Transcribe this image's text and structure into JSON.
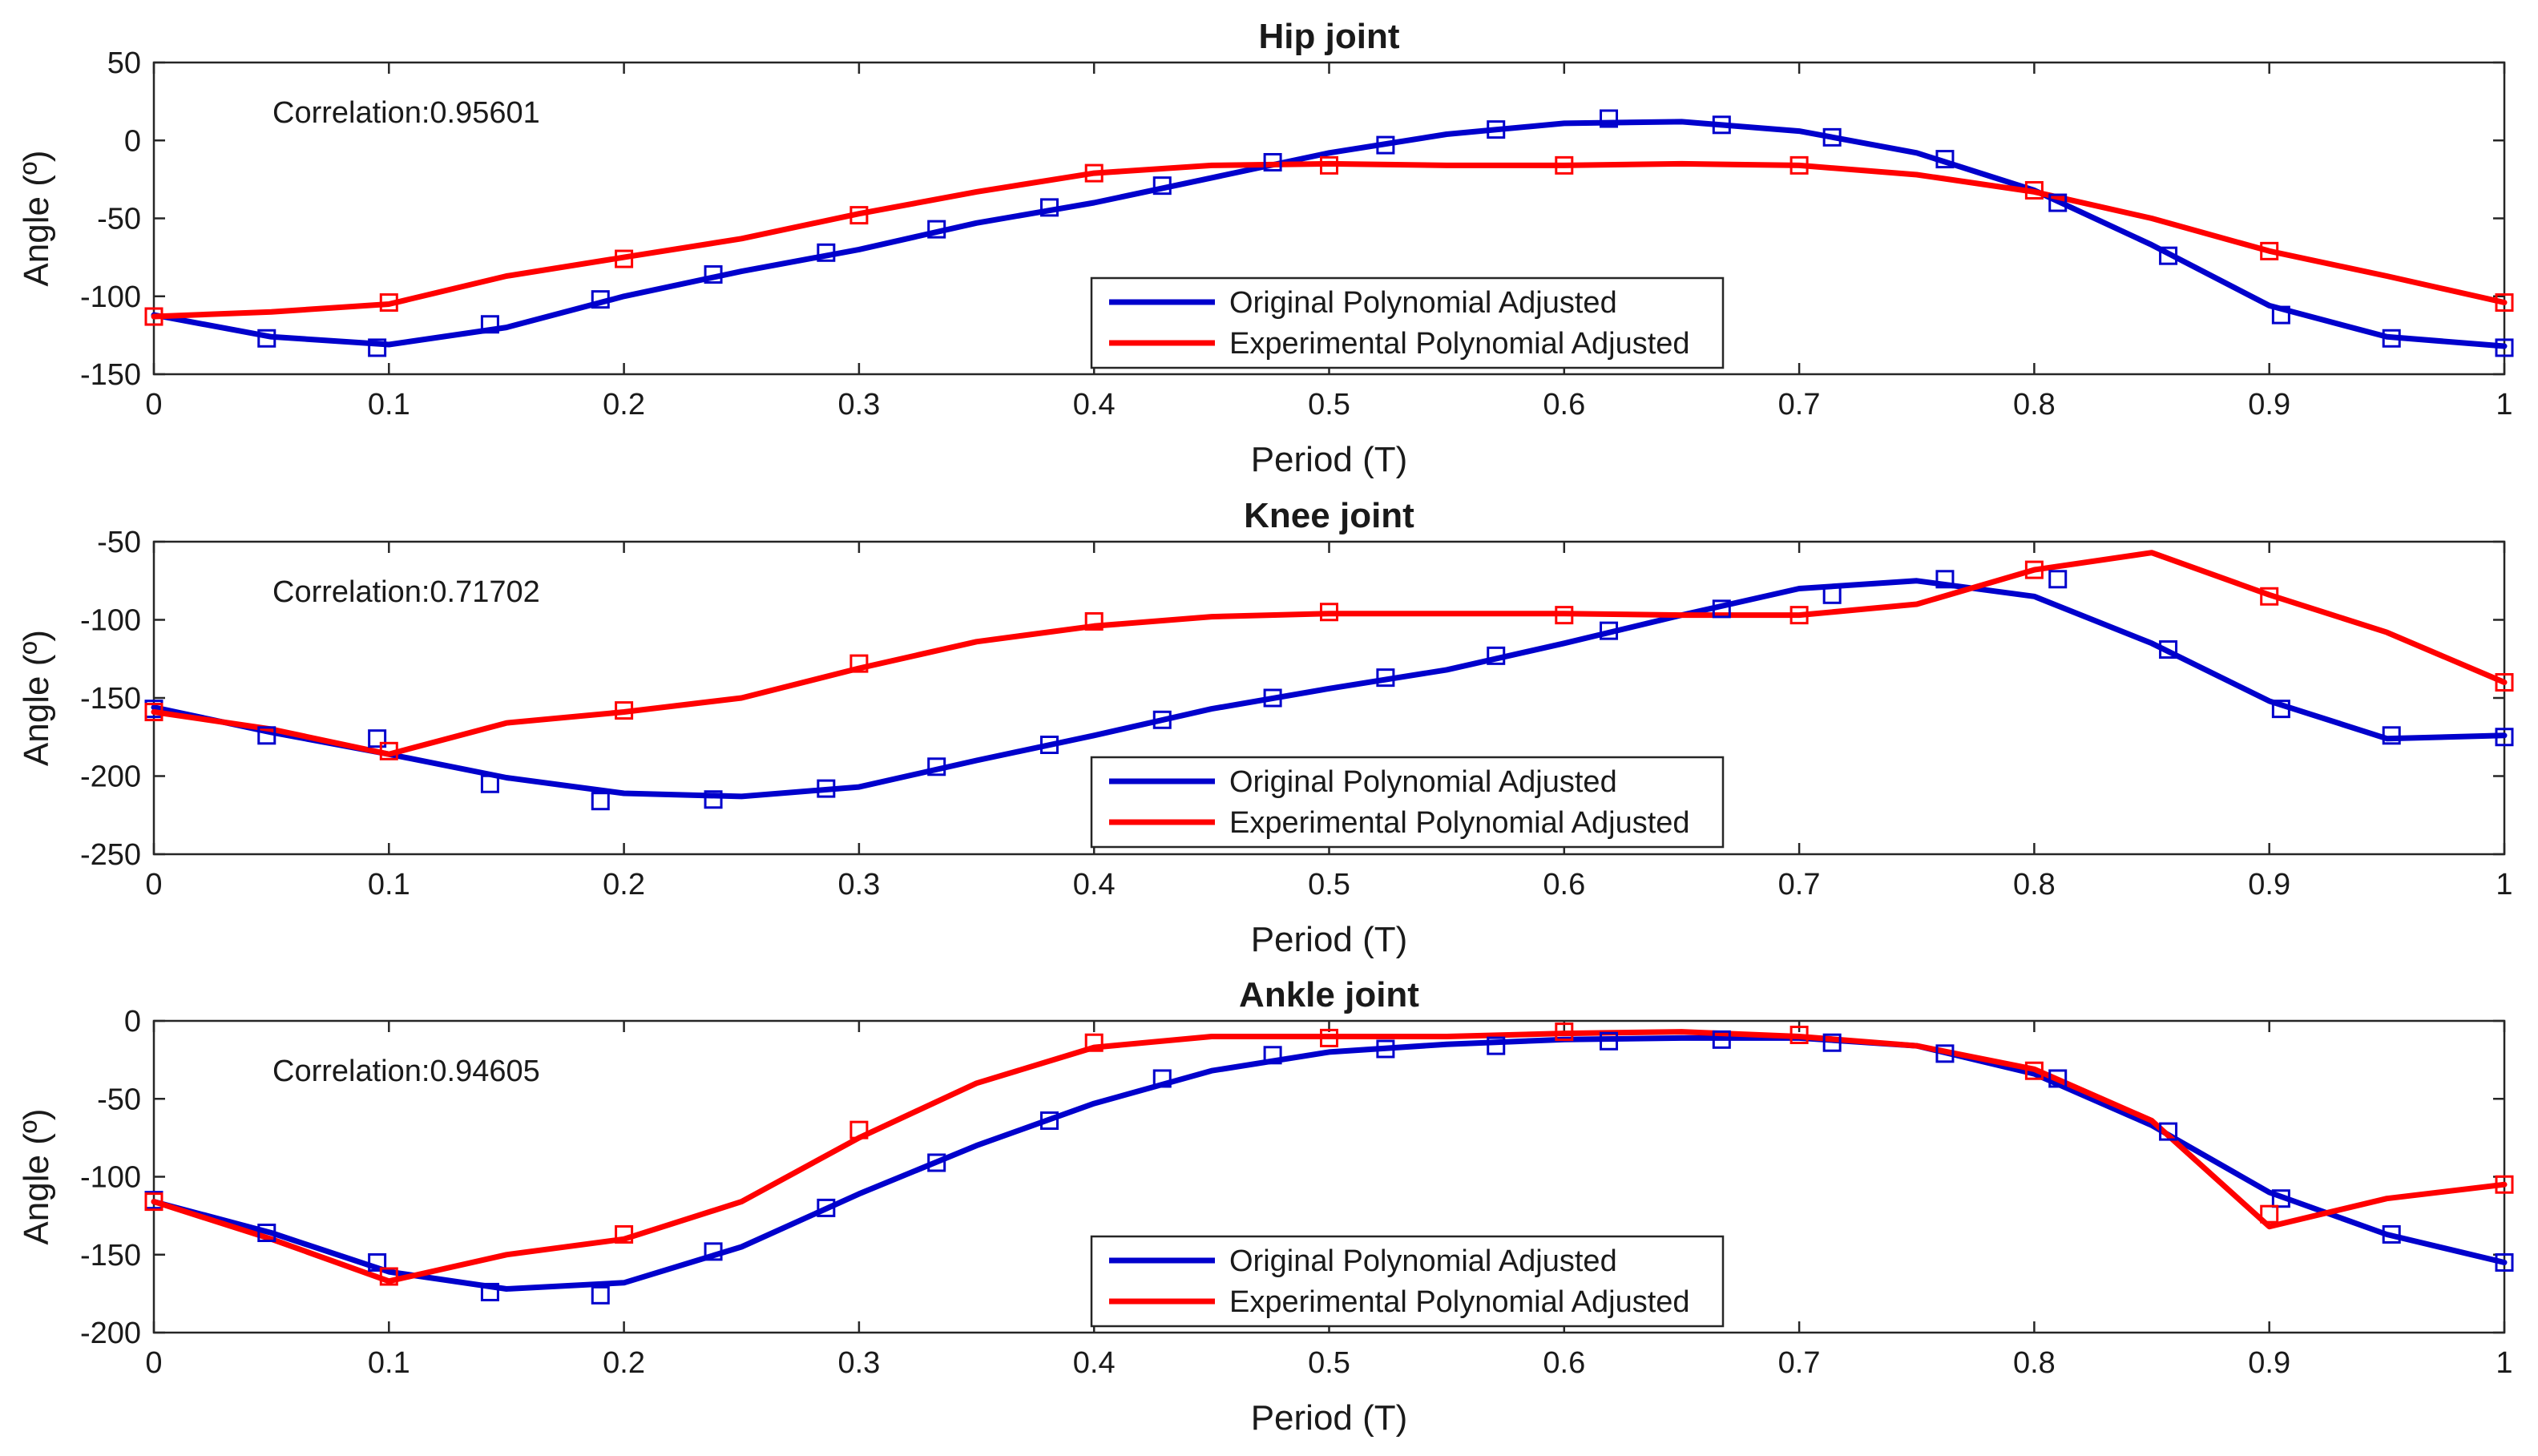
{
  "chart_data": [
    {
      "type": "line",
      "title": "Hip joint",
      "xlabel": "Period (T)",
      "ylabel": "Angle (º)",
      "xlim": [
        0,
        1
      ],
      "ylim": [
        -150,
        50
      ],
      "xticks": [
        0,
        0.1,
        0.2,
        0.3,
        0.4,
        0.5,
        0.6,
        0.7,
        0.8,
        0.9,
        1
      ],
      "xtick_labels": [
        "0",
        "0.1",
        "0.2",
        "0.3",
        "0.4",
        "0.5",
        "0.6",
        "0.7",
        "0.8",
        "0.9",
        "1"
      ],
      "yticks": [
        -150,
        -100,
        -50,
        0,
        50
      ],
      "ytick_labels": [
        "-150",
        "-100",
        "-50",
        "0",
        "50"
      ],
      "annotation": "Correlation:0.95601",
      "legend": [
        "Original Polynomial Adjusted",
        "Experimental Polynomial Adjusted"
      ],
      "series": [
        {
          "name": "Original Polynomial Adjusted",
          "color": "#0000cc",
          "line_x": [
            0,
            0.05,
            0.1,
            0.15,
            0.2,
            0.25,
            0.3,
            0.35,
            0.4,
            0.45,
            0.5,
            0.55,
            0.6,
            0.65,
            0.7,
            0.75,
            0.8,
            0.85,
            0.9,
            0.95,
            1
          ],
          "line_y": [
            -112,
            -126,
            -131,
            -120,
            -100,
            -84,
            -70,
            -53,
            -40,
            -24,
            -8,
            4,
            11,
            12,
            6,
            -8,
            -32,
            -67,
            -106,
            -126,
            -132
          ],
          "marker_x": [
            0,
            0.048,
            0.095,
            0.143,
            0.19,
            0.238,
            0.286,
            0.333,
            0.381,
            0.429,
            0.476,
            0.524,
            0.571,
            0.619,
            0.667,
            0.714,
            0.762,
            0.81,
            0.857,
            0.905,
            0.952,
            1
          ],
          "marker_y": [
            -113,
            -127,
            -133,
            -118,
            -102,
            -86,
            -72,
            -57,
            -43,
            -29,
            -14,
            -3,
            7,
            14,
            10,
            2,
            -12,
            -40,
            -74,
            -112,
            -127,
            -133
          ]
        },
        {
          "name": "Experimental Polynomial Adjusted",
          "color": "#ff0000",
          "line_x": [
            0,
            0.05,
            0.1,
            0.15,
            0.2,
            0.25,
            0.3,
            0.35,
            0.4,
            0.45,
            0.5,
            0.55,
            0.6,
            0.65,
            0.7,
            0.75,
            0.8,
            0.85,
            0.9,
            0.95,
            1
          ],
          "line_y": [
            -113,
            -110,
            -105,
            -87,
            -75,
            -63,
            -47,
            -33,
            -21,
            -16,
            -15,
            -16,
            -16,
            -15,
            -16,
            -22,
            -33,
            -50,
            -71,
            -87,
            -104
          ],
          "marker_x": [
            0,
            0.1,
            0.2,
            0.3,
            0.4,
            0.5,
            0.6,
            0.7,
            0.8,
            0.9,
            1
          ],
          "marker_y": [
            -113,
            -104,
            -76,
            -48,
            -21,
            -16,
            -16,
            -16,
            -32,
            -71,
            -104
          ]
        }
      ]
    },
    {
      "type": "line",
      "title": "Knee joint",
      "xlabel": "Period (T)",
      "ylabel": "Angle (º)",
      "xlim": [
        0,
        1
      ],
      "ylim": [
        -250,
        -50
      ],
      "xticks": [
        0,
        0.1,
        0.2,
        0.3,
        0.4,
        0.5,
        0.6,
        0.7,
        0.8,
        0.9,
        1
      ],
      "xtick_labels": [
        "0",
        "0.1",
        "0.2",
        "0.3",
        "0.4",
        "0.5",
        "0.6",
        "0.7",
        "0.8",
        "0.9",
        "1"
      ],
      "yticks": [
        -250,
        -200,
        -150,
        -100,
        -50
      ],
      "ytick_labels": [
        "-250",
        "-200",
        "-150",
        "-100",
        "-50"
      ],
      "annotation": "Correlation:0.71702",
      "legend": [
        "Original Polynomial Adjusted",
        "Experimental Polynomial Adjusted"
      ],
      "series": [
        {
          "name": "Original Polynomial Adjusted",
          "color": "#0000cc",
          "line_x": [
            0,
            0.05,
            0.1,
            0.15,
            0.2,
            0.25,
            0.3,
            0.35,
            0.4,
            0.45,
            0.5,
            0.55,
            0.6,
            0.65,
            0.7,
            0.75,
            0.8,
            0.85,
            0.9,
            0.95,
            1
          ],
          "line_y": [
            -156,
            -172,
            -186,
            -201,
            -211,
            -213,
            -207,
            -190,
            -174,
            -157,
            -144,
            -132,
            -115,
            -97,
            -80,
            -75,
            -85,
            -115,
            -152,
            -176,
            -174
          ],
          "marker_x": [
            0,
            0.048,
            0.095,
            0.143,
            0.19,
            0.238,
            0.286,
            0.333,
            0.381,
            0.429,
            0.476,
            0.524,
            0.571,
            0.619,
            0.667,
            0.714,
            0.762,
            0.81,
            0.857,
            0.905,
            0.952,
            1
          ],
          "marker_y": [
            -157,
            -174,
            -176,
            -205,
            -216,
            -215,
            -208,
            -194,
            -180,
            -164,
            -150,
            -137,
            -123,
            -107,
            -93,
            -84,
            -74,
            -74,
            -119,
            -157,
            -174,
            -175
          ]
        },
        {
          "name": "Experimental Polynomial Adjusted",
          "color": "#ff0000",
          "line_x": [
            0,
            0.05,
            0.1,
            0.15,
            0.2,
            0.25,
            0.3,
            0.35,
            0.4,
            0.45,
            0.5,
            0.55,
            0.6,
            0.65,
            0.7,
            0.75,
            0.8,
            0.85,
            0.9,
            0.95,
            1
          ],
          "line_y": [
            -159,
            -170,
            -186,
            -166,
            -159,
            -150,
            -131,
            -114,
            -104,
            -98,
            -96,
            -96,
            -96,
            -97,
            -97,
            -90,
            -68,
            -57,
            -84,
            -108,
            -140
          ],
          "marker_x": [
            0,
            0.1,
            0.2,
            0.3,
            0.4,
            0.5,
            0.6,
            0.7,
            0.8,
            0.9,
            1
          ],
          "marker_y": [
            -159,
            -184,
            -158,
            -128,
            -101,
            -95,
            -97,
            -97,
            -68,
            -85,
            -140
          ]
        }
      ]
    },
    {
      "type": "line",
      "title": "Ankle joint",
      "xlabel": "Period (T)",
      "ylabel": "Angle (º)",
      "xlim": [
        0,
        1
      ],
      "ylim": [
        -200,
        0
      ],
      "xticks": [
        0,
        0.1,
        0.2,
        0.3,
        0.4,
        0.5,
        0.6,
        0.7,
        0.8,
        0.9,
        1
      ],
      "xtick_labels": [
        "0",
        "0.1",
        "0.2",
        "0.3",
        "0.4",
        "0.5",
        "0.6",
        "0.7",
        "0.8",
        "0.9",
        "1"
      ],
      "yticks": [
        -200,
        -150,
        -100,
        -50,
        0
      ],
      "ytick_labels": [
        "-200",
        "-150",
        "-100",
        "-50",
        "0"
      ],
      "annotation": "Correlation:0.94605",
      "legend": [
        "Original Polynomial Adjusted",
        "Experimental Polynomial Adjusted"
      ],
      "series": [
        {
          "name": "Original Polynomial Adjusted",
          "color": "#0000cc",
          "line_x": [
            0,
            0.05,
            0.1,
            0.15,
            0.2,
            0.25,
            0.3,
            0.35,
            0.4,
            0.45,
            0.5,
            0.55,
            0.6,
            0.65,
            0.7,
            0.75,
            0.8,
            0.85,
            0.9,
            0.95,
            1
          ],
          "line_y": [
            -116,
            -136,
            -161,
            -172,
            -168,
            -145,
            -111,
            -80,
            -53,
            -32,
            -20,
            -15,
            -12,
            -11,
            -11,
            -16,
            -34,
            -67,
            -110,
            -137,
            -155
          ],
          "marker_x": [
            0,
            0.048,
            0.095,
            0.143,
            0.19,
            0.238,
            0.286,
            0.333,
            0.381,
            0.429,
            0.476,
            0.524,
            0.571,
            0.619,
            0.667,
            0.714,
            0.762,
            0.81,
            0.857,
            0.905,
            0.952,
            1
          ],
          "marker_y": [
            -115,
            -136,
            -155,
            -174,
            -176,
            -148,
            -120,
            -91,
            -64,
            -37,
            -22,
            -18,
            -16,
            -13,
            -12,
            -14,
            -21,
            -37,
            -71,
            -114,
            -137,
            -155
          ]
        },
        {
          "name": "Experimental Polynomial Adjusted",
          "color": "#ff0000",
          "line_x": [
            0,
            0.05,
            0.1,
            0.15,
            0.2,
            0.25,
            0.3,
            0.35,
            0.4,
            0.45,
            0.5,
            0.55,
            0.6,
            0.65,
            0.7,
            0.75,
            0.8,
            0.85,
            0.9,
            0.95,
            1
          ],
          "line_y": [
            -116,
            -140,
            -167,
            -150,
            -140,
            -116,
            -75,
            -40,
            -17,
            -10,
            -10,
            -10,
            -8,
            -7,
            -10,
            -16,
            -31,
            -64,
            -132,
            -114,
            -105
          ],
          "marker_x": [
            0,
            0.1,
            0.2,
            0.3,
            0.4,
            0.5,
            0.6,
            0.7,
            0.8,
            0.9,
            1
          ],
          "marker_y": [
            -116,
            -164,
            -137,
            -70,
            -14,
            -11,
            -7,
            -9,
            -32,
            -124,
            -105
          ]
        }
      ]
    }
  ]
}
